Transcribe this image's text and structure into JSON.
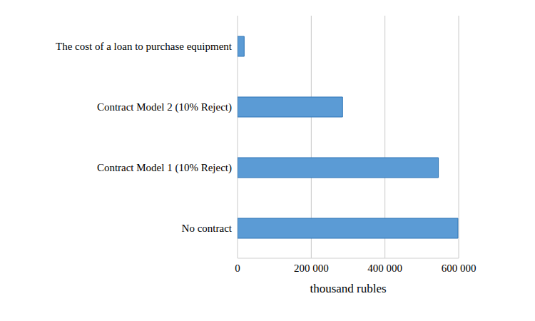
{
  "chart_data": {
    "type": "bar",
    "orientation": "horizontal",
    "categories": [
      "The cost of a loan to purchase equipment",
      "Contract Model 2 (10% Reject)",
      "Contract Model 1 (10% Reject)",
      "No contract"
    ],
    "values": [
      18000,
      285000,
      545000,
      598000
    ],
    "color": "#5b9bd5",
    "x_label": "thousand rubles",
    "xlim": [
      0,
      600000
    ],
    "xticks": [
      0,
      {
        "value": 200000,
        "label": "200 000"
      },
      {
        "value": 400000,
        "label": "400 000"
      },
      {
        "value": 600000,
        "label": "600 000"
      }
    ],
    "grid": true
  }
}
